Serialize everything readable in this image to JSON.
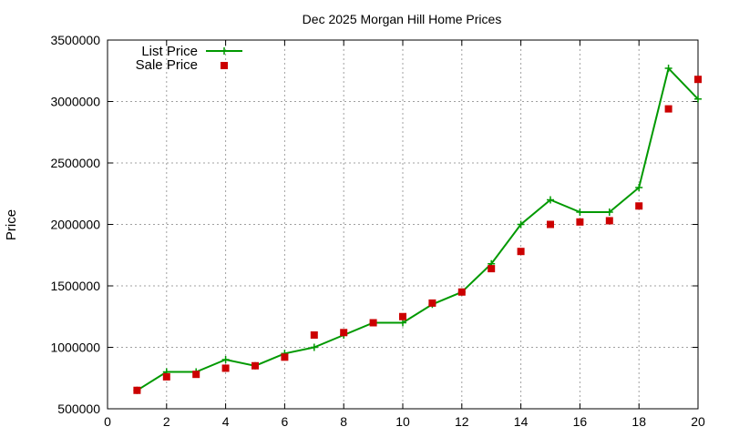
{
  "chart_data": {
    "type": "line",
    "title": "Dec 2025 Morgan Hill Home Prices",
    "xlabel": "",
    "ylabel": "Price",
    "xlim": [
      0,
      20
    ],
    "ylim": [
      500000,
      3500000
    ],
    "x_ticks": [
      "0",
      "2",
      "4",
      "6",
      "8",
      "10",
      "12",
      "14",
      "16",
      "18",
      "20"
    ],
    "y_ticks": [
      "500000",
      "1000000",
      "1500000",
      "2000000",
      "2500000",
      "3000000",
      "3500000"
    ],
    "grid": true,
    "legend_position": "top-left",
    "series": [
      {
        "name": "List Price",
        "style": "line-with-cross-points",
        "color": "#009900",
        "x": [
          1,
          2,
          3,
          4,
          5,
          6,
          7,
          8,
          9,
          10,
          11,
          12,
          13,
          14,
          15,
          16,
          17,
          18,
          19,
          20
        ],
        "y": [
          650000,
          800000,
          800000,
          900000,
          850000,
          950000,
          1000000,
          1100000,
          1200000,
          1200000,
          1350000,
          1450000,
          1680000,
          2000000,
          2200000,
          2100000,
          2100000,
          2300000,
          3270000,
          3020000
        ]
      },
      {
        "name": "Sale Price",
        "style": "square-points",
        "color": "#cc0000",
        "x": [
          1,
          2,
          3,
          4,
          5,
          6,
          7,
          8,
          9,
          10,
          11,
          12,
          13,
          14,
          15,
          16,
          17,
          18,
          19,
          20
        ],
        "y": [
          650000,
          760000,
          780000,
          830000,
          850000,
          920000,
          1100000,
          1120000,
          1200000,
          1250000,
          1360000,
          1450000,
          1640000,
          1780000,
          2000000,
          2020000,
          2030000,
          2150000,
          2940000,
          3180000
        ]
      }
    ]
  }
}
